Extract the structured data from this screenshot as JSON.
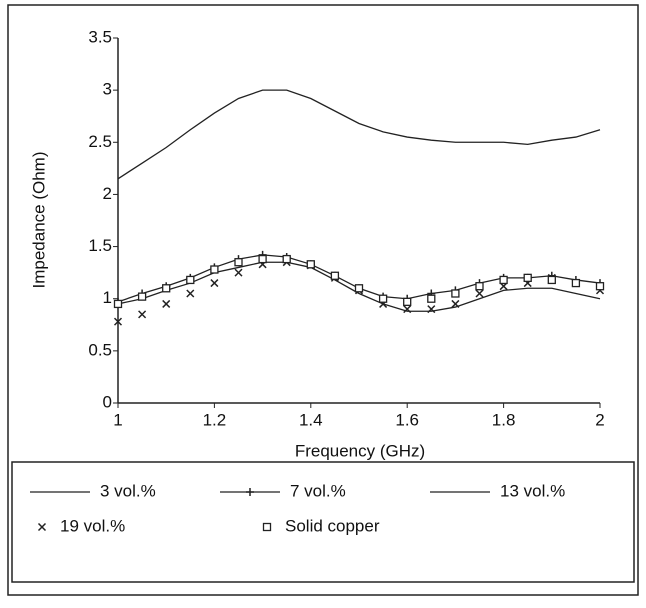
{
  "chart_data": {
    "type": "line",
    "xlabel": "Frequency (GHz)",
    "ylabel": "Impedance (Ohm)",
    "x": [
      1,
      1.05,
      1.1,
      1.15,
      1.2,
      1.25,
      1.3,
      1.35,
      1.4,
      1.45,
      1.5,
      1.55,
      1.6,
      1.65,
      1.7,
      1.75,
      1.8,
      1.85,
      1.9,
      1.95,
      2
    ],
    "xlim": [
      1,
      2
    ],
    "xticks": [
      1,
      1.2,
      1.4,
      1.6,
      1.8,
      2
    ],
    "ylim": [
      0,
      3.5
    ],
    "yticks": [
      0,
      0.5,
      1,
      1.5,
      2,
      2.5,
      3,
      3.5
    ],
    "grid": false,
    "legend": "bottom",
    "series": [
      {
        "name": "3 vol.%",
        "color": "#222222",
        "line": true,
        "marker": "none",
        "values": [
          2.15,
          2.3,
          2.45,
          2.62,
          2.78,
          2.92,
          3.0,
          3.0,
          2.92,
          2.8,
          2.68,
          2.6,
          2.55,
          2.52,
          2.5,
          2.5,
          2.5,
          2.48,
          2.52,
          2.55,
          2.62
        ]
      },
      {
        "name": "7 vol.%",
        "color": "#222222",
        "line": true,
        "marker": "plus",
        "values": [
          0.97,
          1.05,
          1.12,
          1.2,
          1.3,
          1.38,
          1.42,
          1.4,
          1.33,
          1.22,
          1.1,
          1.02,
          1.0,
          1.05,
          1.08,
          1.15,
          1.2,
          1.2,
          1.22,
          1.18,
          1.15
        ]
      },
      {
        "name": "13 vol.%",
        "color": "#222222",
        "line": true,
        "marker": "none",
        "values": [
          0.95,
          1.0,
          1.08,
          1.15,
          1.25,
          1.3,
          1.35,
          1.35,
          1.3,
          1.18,
          1.05,
          0.95,
          0.88,
          0.88,
          0.92,
          1.0,
          1.08,
          1.1,
          1.1,
          1.05,
          1.0
        ]
      },
      {
        "name": "19 vol.%",
        "color": "#222222",
        "line": false,
        "marker": "x",
        "values": [
          0.78,
          0.85,
          0.95,
          1.05,
          1.15,
          1.25,
          1.33,
          1.35,
          1.32,
          1.2,
          1.08,
          0.95,
          0.9,
          0.9,
          0.95,
          1.05,
          1.12,
          1.15,
          1.2,
          1.15,
          1.08
        ]
      },
      {
        "name": "Solid copper",
        "color": "#222222",
        "line": false,
        "marker": "square",
        "values": [
          0.95,
          1.02,
          1.1,
          1.18,
          1.28,
          1.35,
          1.38,
          1.38,
          1.33,
          1.22,
          1.1,
          1.0,
          0.97,
          1.0,
          1.05,
          1.12,
          1.18,
          1.2,
          1.18,
          1.15,
          1.12
        ]
      }
    ]
  }
}
